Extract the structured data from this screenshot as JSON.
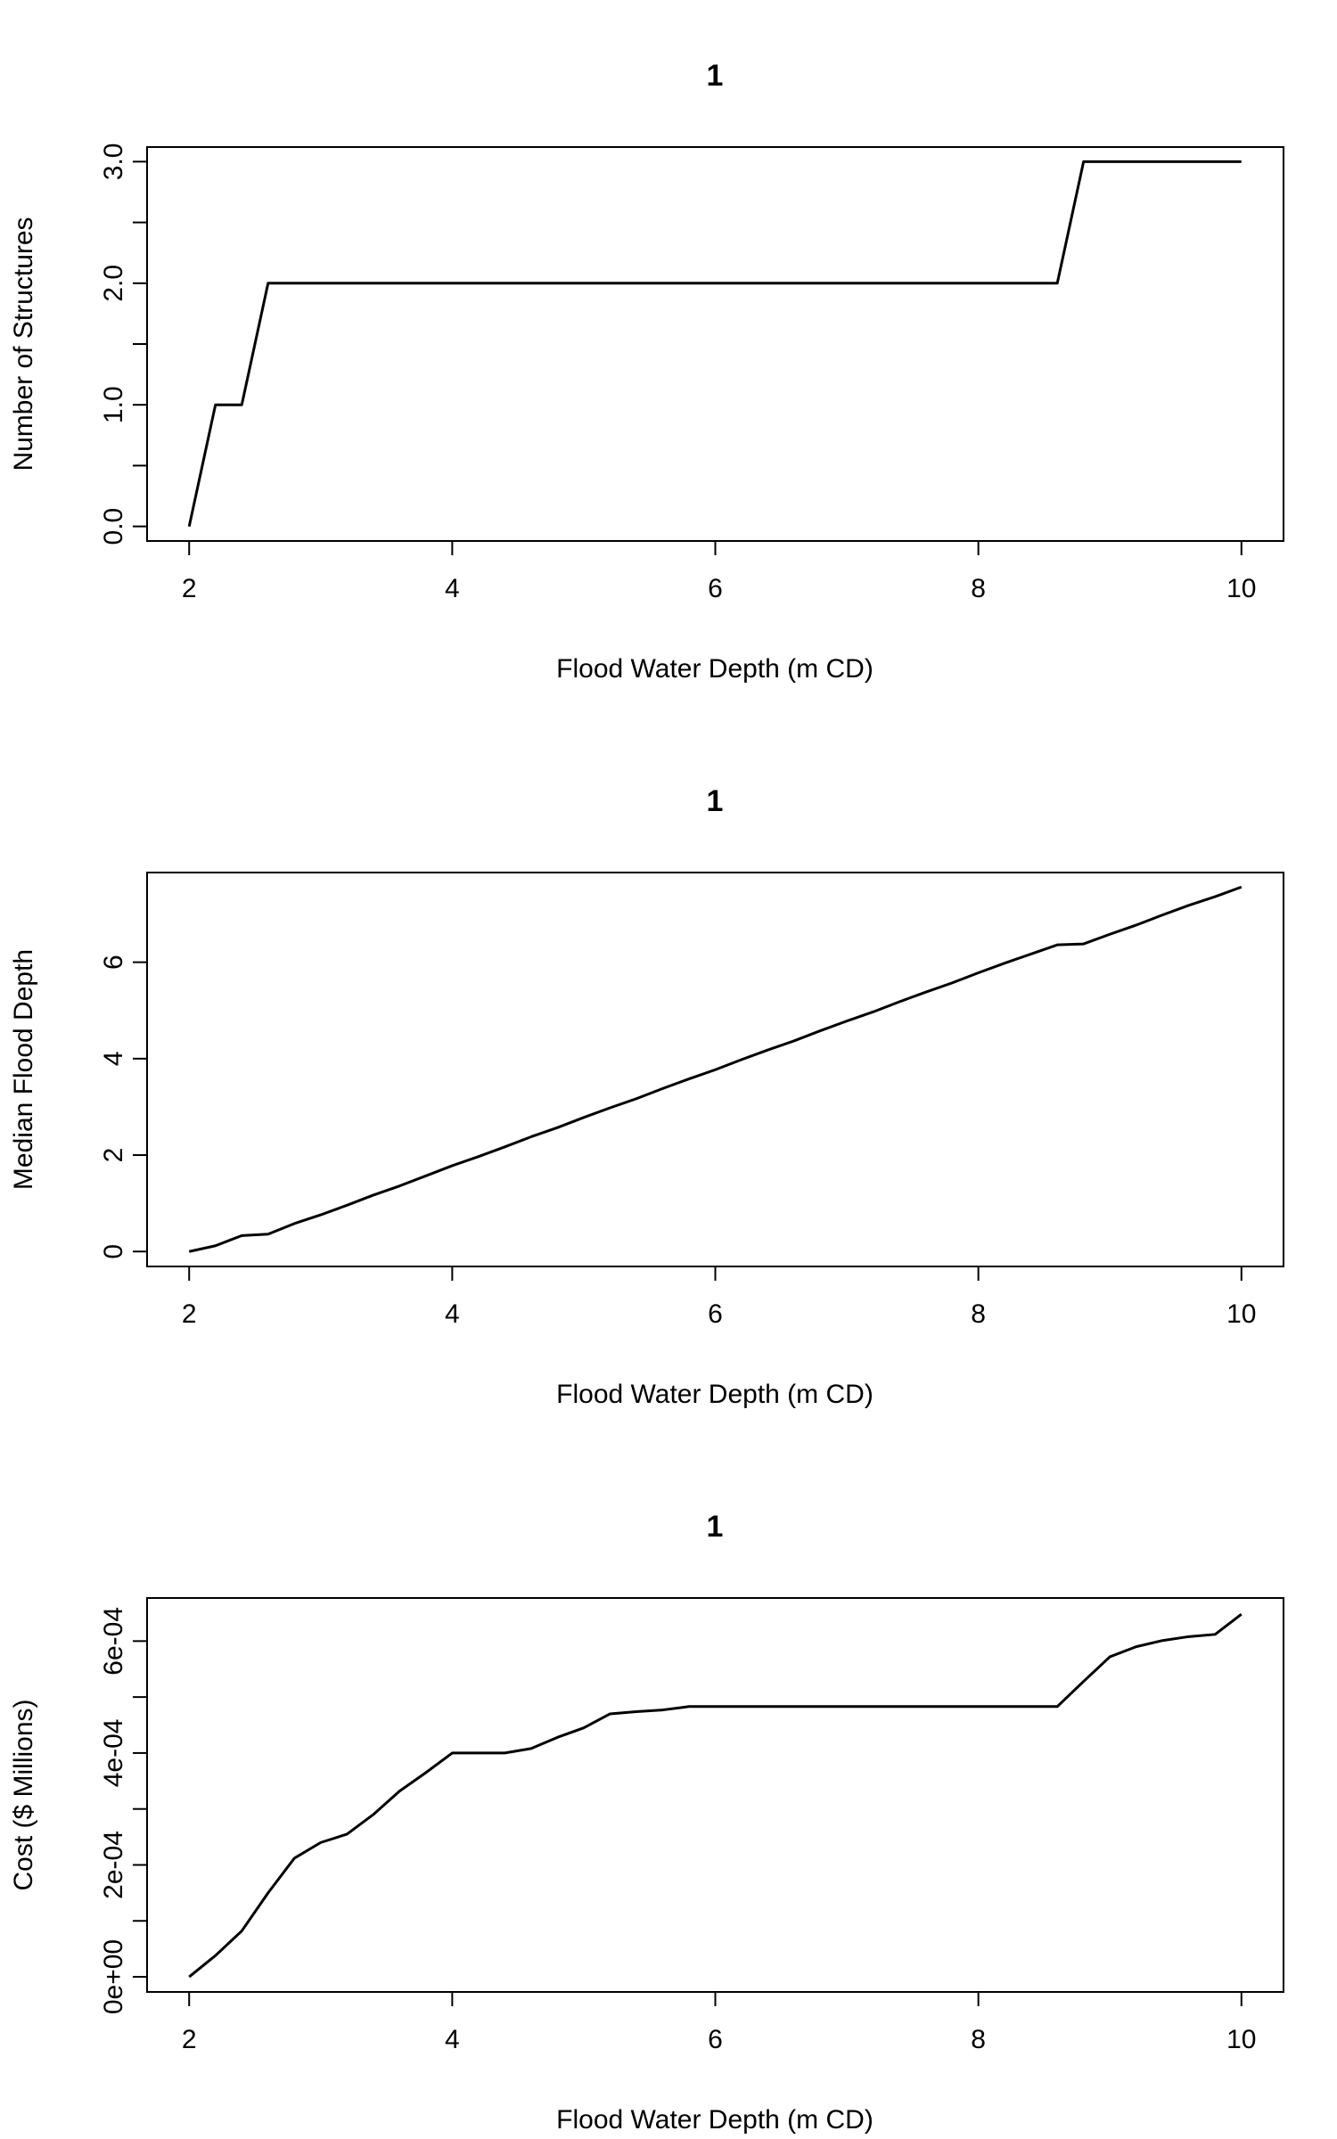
{
  "chart_data": [
    {
      "type": "line",
      "title": "1",
      "xlabel": "Flood Water Depth (m CD)",
      "ylabel": "Number of Structures",
      "xlim": [
        1.68,
        10.32
      ],
      "ylim": [
        -0.12,
        3.12
      ],
      "xticks": [
        2,
        4,
        6,
        8,
        10
      ],
      "xtick_labels": [
        "2",
        "4",
        "6",
        "8",
        "10"
      ],
      "yticks": [
        0,
        0.5,
        1,
        1.5,
        2,
        2.5,
        3
      ],
      "ytick_labels": [
        "0.0",
        "",
        "1.0",
        "",
        "2.0",
        "",
        "3.0"
      ],
      "grid": false,
      "series": [
        {
          "x": [
            2.0,
            2.2,
            2.4,
            2.6,
            8.6,
            8.8,
            10.0
          ],
          "y": [
            0,
            1,
            1,
            2,
            2,
            3,
            3
          ]
        }
      ]
    },
    {
      "type": "line",
      "title": "1",
      "xlabel": "Flood Water Depth (m CD)",
      "ylabel": "Median Flood Depth",
      "xlim": [
        1.68,
        10.32
      ],
      "ylim": [
        -0.31,
        7.86
      ],
      "xticks": [
        2,
        4,
        6,
        8,
        10
      ],
      "xtick_labels": [
        "2",
        "4",
        "6",
        "8",
        "10"
      ],
      "yticks": [
        0,
        2,
        4,
        6
      ],
      "ytick_labels": [
        "0",
        "2",
        "4",
        "6"
      ],
      "grid": false,
      "series": [
        {
          "x": [
            2.0,
            2.2,
            2.4,
            2.6,
            2.8,
            3.0,
            3.2,
            3.4,
            3.6,
            3.8,
            4.0,
            4.2,
            4.4,
            4.6,
            4.8,
            5.0,
            5.2,
            5.4,
            5.6,
            5.8,
            6.0,
            6.2,
            6.4,
            6.6,
            6.8,
            7.0,
            7.2,
            7.4,
            7.6,
            7.8,
            8.0,
            8.2,
            8.4,
            8.6,
            8.8,
            9.0,
            9.2,
            9.4,
            9.6,
            9.8,
            10.0
          ],
          "y": [
            0.0,
            0.12,
            0.33,
            0.36,
            0.58,
            0.76,
            0.96,
            1.17,
            1.36,
            1.57,
            1.78,
            1.97,
            2.17,
            2.38,
            2.57,
            2.78,
            2.98,
            3.17,
            3.38,
            3.58,
            3.77,
            3.98,
            4.18,
            4.37,
            4.58,
            4.78,
            4.97,
            5.18,
            5.38,
            5.57,
            5.78,
            5.98,
            6.17,
            6.36,
            6.38,
            6.58,
            6.77,
            6.98,
            7.18,
            7.36,
            7.56
          ]
        }
      ]
    },
    {
      "type": "line",
      "title": "1",
      "xlabel": "Flood Water Depth (m CD)",
      "ylabel": "Cost ($ Millions)",
      "xlim": [
        1.68,
        10.32
      ],
      "ylim": [
        -2.7e-05,
        0.000677
      ],
      "xticks": [
        2,
        4,
        6,
        8,
        10
      ],
      "xtick_labels": [
        "2",
        "4",
        "6",
        "8",
        "10"
      ],
      "yticks": [
        0,
        0.0001,
        0.0002,
        0.0003,
        0.0004,
        0.0005,
        0.0006
      ],
      "ytick_labels": [
        "0e+00",
        "",
        "2e-04",
        "",
        "4e-04",
        "",
        "6e-04"
      ],
      "grid": false,
      "series": [
        {
          "x": [
            2.0,
            2.2,
            2.4,
            2.6,
            2.8,
            3.0,
            3.2,
            3.4,
            3.6,
            3.8,
            4.0,
            4.2,
            4.4,
            4.6,
            4.8,
            5.0,
            5.2,
            5.4,
            5.6,
            5.8,
            6.0,
            8.6,
            8.8,
            9.0,
            9.2,
            9.4,
            9.6,
            9.8,
            10.0
          ],
          "y": [
            0.0,
            3.8e-05,
            8.2e-05,
            0.00015,
            0.000212,
            0.00024,
            0.000255,
            0.00029,
            0.000332,
            0.000365,
            0.0004,
            0.0004,
            0.0004,
            0.000408,
            0.000428,
            0.000445,
            0.00047,
            0.000474,
            0.000477,
            0.000483,
            0.000483,
            0.000483,
            0.000528,
            0.000572,
            0.00059,
            0.000601,
            0.000608,
            0.000612,
            0.000648
          ]
        }
      ]
    }
  ]
}
